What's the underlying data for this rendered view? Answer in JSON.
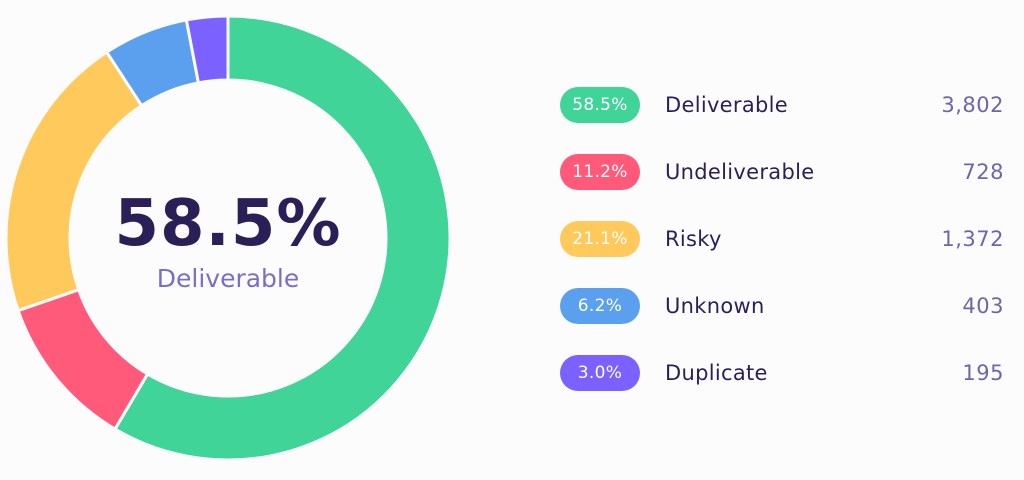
{
  "chart_data": {
    "type": "pie",
    "title": "",
    "center": {
      "value": "58.5%",
      "label": "Deliverable"
    },
    "slices": [
      {
        "label": "Deliverable",
        "percent": 58.5,
        "percent_label": "58.5%",
        "count": "3,802",
        "value": 3802,
        "color": "#40d498"
      },
      {
        "label": "Undeliverable",
        "percent": 11.2,
        "percent_label": "11.2%",
        "count": "728",
        "value": 728,
        "color": "#ff5a7a"
      },
      {
        "label": "Risky",
        "percent": 21.1,
        "percent_label": "21.1%",
        "count": "1,372",
        "value": 1372,
        "color": "#ffc95c"
      },
      {
        "label": "Unknown",
        "percent": 6.2,
        "percent_label": "6.2%",
        "count": "403",
        "value": 403,
        "color": "#5aa0ef"
      },
      {
        "label": "Duplicate",
        "percent": 3.0,
        "percent_label": "3.0%",
        "count": "195",
        "value": 195,
        "color": "#7b61ff"
      }
    ]
  }
}
